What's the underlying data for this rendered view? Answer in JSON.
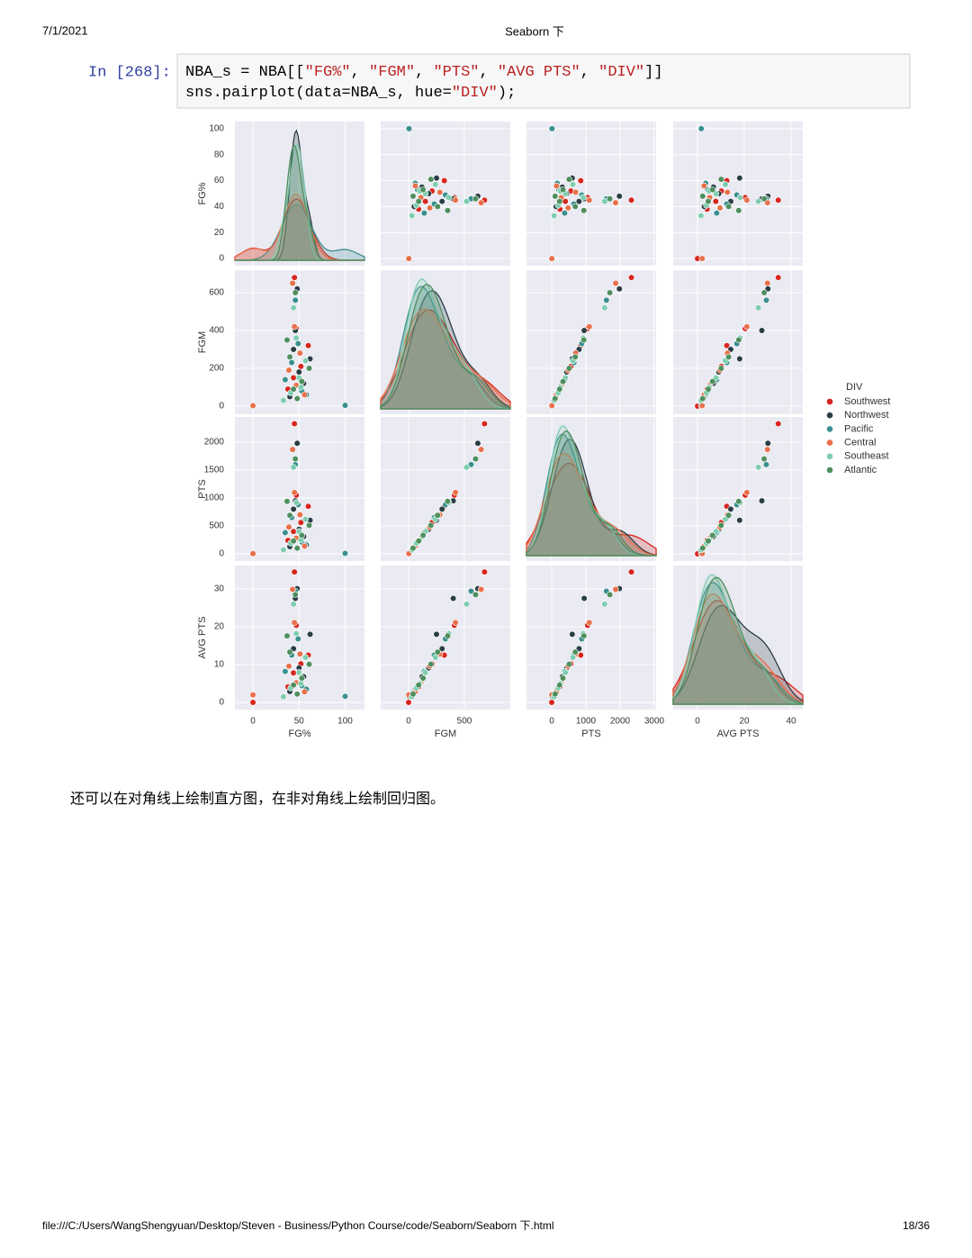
{
  "header": {
    "date": "7/1/2021",
    "title": "Seaborn 下"
  },
  "cell": {
    "prompt": "In [268]:",
    "code": [
      [
        "NBA_s = NBA[[",
        "\"FG%\"",
        ", ",
        "\"FGM\"",
        ", ",
        "\"PTS\"",
        ", ",
        "\"AVG PTS\"",
        ", ",
        "\"DIV\"",
        "]]"
      ],
      [
        "sns.pairplot(data=NBA_s, hue=",
        "\"DIV\"",
        ");"
      ]
    ]
  },
  "chart_data": {
    "type": "pairplot",
    "legend_title": "DIV",
    "legend": "right",
    "variables": [
      {
        "name": "FG%",
        "xlim": [
          -19.6,
          121
        ],
        "xticks": [
          0,
          50,
          100
        ],
        "ylim": [
          -5.5,
          105.5
        ],
        "yticks": [
          0,
          20,
          40,
          60,
          80,
          100
        ]
      },
      {
        "name": "FGM",
        "xlim": [
          -250,
          911
        ],
        "xticks": [
          0,
          500
        ],
        "ylim": [
          -43,
          719
        ],
        "yticks": [
          0,
          200,
          400,
          600
        ]
      },
      {
        "name": "PTS",
        "xlim": [
          -737,
          3053
        ],
        "xticks": [
          0,
          1000,
          2000,
          3000
        ],
        "ylim": [
          -129,
          2452
        ],
        "yticks": [
          0,
          500,
          1000,
          1500,
          2000
        ]
      },
      {
        "name": "AVG PTS",
        "xlim": [
          -10.4,
          45
        ],
        "xticks": [
          0,
          20,
          40
        ],
        "ylim": [
          -1.9,
          36.2
        ],
        "yticks": [
          0,
          10,
          20,
          30
        ]
      }
    ],
    "series": [
      {
        "name": "Southwest",
        "color": "#d7261e",
        "values": [
          [
            45,
            52,
            38,
            60,
            0,
            47,
            44
          ],
          [
            680,
            210,
            90,
            320,
            0,
            410,
            150
          ],
          [
            2330,
            560,
            240,
            850,
            0,
            1050,
            400
          ],
          [
            34.5,
            10.2,
            4.1,
            12.5,
            0,
            20.4,
            7.8
          ]
        ]
      },
      {
        "name": "Northwest",
        "color": "#2a3d45",
        "values": [
          [
            48,
            44,
            55,
            40,
            46,
            62,
            50
          ],
          [
            620,
            300,
            120,
            50,
            400,
            250,
            180
          ],
          [
            1980,
            800,
            310,
            130,
            950,
            600,
            440
          ],
          [
            30.1,
            14.2,
            6.8,
            2.9,
            27.5,
            18.0,
            9.1
          ]
        ]
      },
      {
        "name": "Pacific",
        "color": "#3a8f8f",
        "values": [
          [
            100,
            46,
            42,
            53,
            35,
            49,
            58
          ],
          [
            4,
            560,
            230,
            80,
            140,
            330,
            60
          ],
          [
            8,
            1600,
            650,
            210,
            380,
            880,
            160
          ],
          [
            1.6,
            29.4,
            12.5,
            4.4,
            8.2,
            16.8,
            3.5
          ]
        ]
      },
      {
        "name": "Central",
        "color": "#e8704a",
        "values": [
          [
            43,
            51,
            47,
            39,
            56,
            0,
            45
          ],
          [
            650,
            280,
            110,
            190,
            60,
            2,
            420
          ],
          [
            1870,
            700,
            280,
            480,
            140,
            4,
            1100
          ],
          [
            29.9,
            12.8,
            5.2,
            9.6,
            2.8,
            2.0,
            21.1
          ]
        ]
      },
      {
        "name": "Southeast",
        "color": "#7fcdb0",
        "values": [
          [
            44,
            57,
            41,
            50,
            33,
            47,
            52
          ],
          [
            520,
            240,
            70,
            150,
            30,
            360,
            100
          ],
          [
            1550,
            620,
            190,
            400,
            70,
            920,
            250
          ],
          [
            26.0,
            11.9,
            3.8,
            7.9,
            1.5,
            18.2,
            5.0
          ]
        ]
      },
      {
        "name": "Atlantic",
        "color": "#4e8f5e",
        "values": [
          [
            46,
            40,
            53,
            48,
            61,
            37,
            44
          ],
          [
            600,
            260,
            130,
            40,
            200,
            350,
            90
          ],
          [
            1700,
            690,
            330,
            100,
            510,
            940,
            230
          ],
          [
            28.5,
            13.3,
            6.4,
            2.2,
            10.1,
            17.6,
            4.6
          ]
        ]
      }
    ]
  },
  "text": "还可以在对角线上绘制直方图，在非对角线上绘制回归图。",
  "footer": {
    "path": "file:///C:/Users/WangShengyuan/Desktop/Steven - Business/Python Course/code/Seaborn/Seaborn 下.html",
    "page": "18/36"
  }
}
